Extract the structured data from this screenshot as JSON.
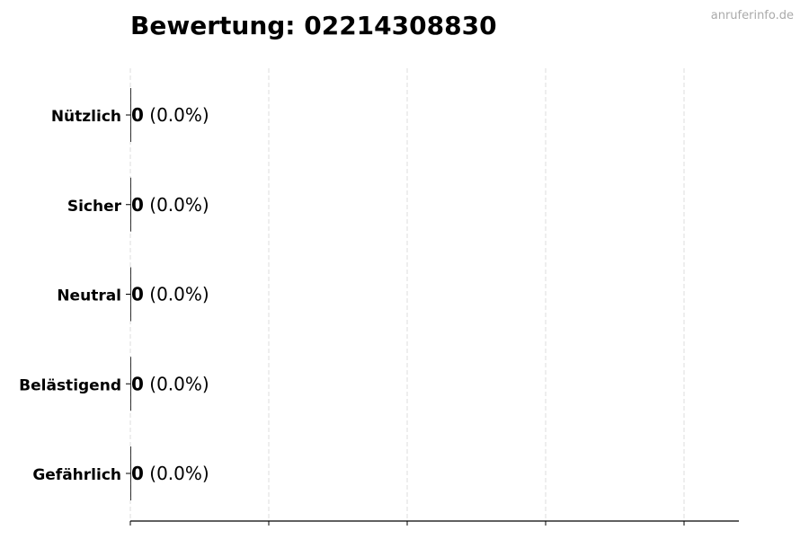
{
  "watermark": "anruferinfo.de",
  "chart_data": {
    "type": "bar",
    "orientation": "horizontal",
    "title": "Bewertung: 02214308830",
    "xlabel": "",
    "ylabel": "",
    "categories": [
      "Nützlich",
      "Sicher",
      "Neutral",
      "Belästigend",
      "Gefährlich"
    ],
    "values": [
      0,
      0,
      0,
      0,
      0
    ],
    "labels": [
      {
        "count": "0",
        "percent": "(0.0%)"
      },
      {
        "count": "0",
        "percent": "(0.0%)"
      },
      {
        "count": "0",
        "percent": "(0.0%)"
      },
      {
        "count": "0",
        "percent": "(0.0%)"
      },
      {
        "count": "0",
        "percent": "(0.0%)"
      }
    ],
    "xlim": [
      0,
      1
    ],
    "x_ticks": [
      0,
      0.2,
      0.4,
      0.6,
      0.8
    ],
    "x_tick_labels": [
      "",
      "",
      "",
      "",
      ""
    ],
    "grid": "vertical dashed",
    "bar_color": "#333333",
    "grid_color": "#dddddd"
  }
}
